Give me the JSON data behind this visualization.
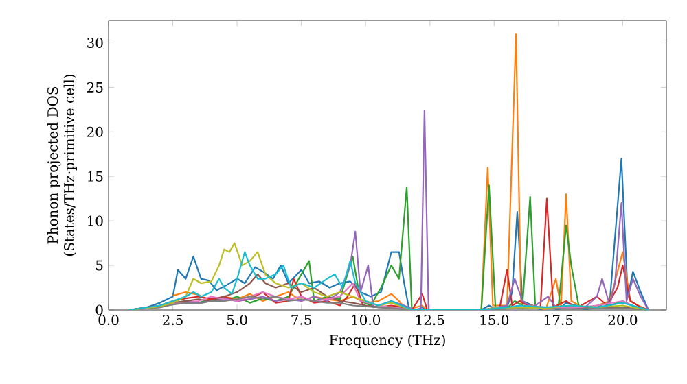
{
  "chart_data": {
    "type": "line",
    "xlabel": "Frequency (THz)",
    "ylabel": "Phonon projected DOS (States/THz·primitive cell)",
    "xlim": [
      0,
      21.7
    ],
    "ylim": [
      0,
      32.5
    ],
    "xticks": [
      {
        "value": 0,
        "label": "0.0"
      },
      {
        "value": 2.5,
        "label": "2.5"
      },
      {
        "value": 5,
        "label": "5.0"
      },
      {
        "value": 7.5,
        "label": "7.5"
      },
      {
        "value": 10,
        "label": "10.0"
      },
      {
        "value": 12.5,
        "label": "12.5"
      },
      {
        "value": 15,
        "label": "15.0"
      },
      {
        "value": 17.5,
        "label": "17.5"
      },
      {
        "value": 20,
        "label": "20.0"
      }
    ],
    "yticks": [
      0,
      5,
      10,
      15,
      20,
      25,
      30
    ],
    "grid": false,
    "marker": "none",
    "line_style": "solid",
    "series": [
      {
        "color": "#1f77b4",
        "x": [
          0.8,
          1.5,
          2,
          2.5,
          2.7,
          3.0,
          3.3,
          3.6,
          3.9,
          4.2,
          4.6,
          5.0,
          5.3,
          5.7,
          6.0,
          6.4,
          6.7,
          7.0,
          7.5,
          7.8,
          8.2,
          8.6,
          9.0,
          9.4,
          9.8,
          10.2,
          10.6,
          11.0,
          11.3,
          11.5,
          11.7,
          12.0,
          12.2,
          12.4,
          14.5,
          14.8,
          15.0,
          15.5,
          15.7,
          15.9,
          16.1,
          16.5,
          16.8,
          17.2,
          17.5,
          17.8,
          18.2,
          18.5,
          19.0,
          19.5,
          19.95,
          20.2,
          20.4,
          20.7,
          21.0
        ],
        "values": [
          0,
          0.3,
          0.8,
          1.5,
          4.5,
          3.5,
          6.0,
          3.5,
          3.3,
          2.2,
          2.8,
          3.5,
          3.0,
          4.8,
          4.3,
          3.5,
          5.0,
          3.0,
          4.5,
          3.0,
          3.2,
          2.5,
          3.0,
          3.2,
          2.0,
          1.5,
          2.0,
          6.5,
          6.5,
          3.0,
          0,
          0,
          0.3,
          0,
          0,
          0.5,
          0.2,
          0.3,
          2.0,
          11,
          1.0,
          0.5,
          0,
          0.3,
          0,
          0.8,
          0.5,
          0,
          0.3,
          1.0,
          17,
          1.5,
          4.3,
          2.0,
          0
        ]
      },
      {
        "color": "#ff7f0e",
        "x": [
          2.5,
          3,
          3.5,
          4,
          4.5,
          5,
          5.5,
          6,
          6.5,
          7,
          7.5,
          8,
          8.5,
          9,
          9.5,
          10,
          10.5,
          11,
          11.3,
          11.6,
          12.2,
          12.4,
          14.5,
          14.75,
          14.95,
          15.5,
          15.85,
          16.05,
          16.5,
          17,
          17.4,
          17.6,
          17.8,
          18.0,
          18.5,
          19,
          19.5,
          20.0,
          20.3,
          20.6,
          21
        ],
        "values": [
          1.6,
          2.0,
          1.7,
          1.0,
          1.5,
          1.2,
          1.8,
          1.0,
          1.5,
          2.0,
          1.0,
          1.5,
          1.2,
          1.0,
          1.5,
          0.8,
          1.0,
          1.8,
          1.0,
          0,
          0.5,
          0,
          0,
          16,
          0.5,
          0.5,
          31,
          0.5,
          0.5,
          0,
          3.5,
          0.3,
          13,
          1.0,
          0.2,
          0.5,
          1.0,
          6.5,
          1.0,
          0.5,
          0
        ]
      },
      {
        "color": "#2ca02c",
        "x": [
          0.8,
          2,
          2.5,
          3,
          3.5,
          4,
          4.5,
          5,
          5.5,
          6,
          6.5,
          7,
          7.8,
          8.0,
          8.5,
          9,
          9.5,
          9.8,
          10.2,
          10.6,
          11,
          11.3,
          11.6,
          11.8,
          14.5,
          14.8,
          15.05,
          15.5,
          15.8,
          16.1,
          16.4,
          16.6,
          17,
          17.5,
          17.8,
          18.0,
          18.3,
          19,
          19.5,
          20,
          20.5,
          21
        ],
        "values": [
          0,
          0.4,
          0.8,
          1.0,
          0.8,
          1.2,
          1.0,
          1.5,
          0.8,
          1.3,
          1.0,
          1.5,
          5.5,
          1.0,
          1.5,
          1.2,
          6.0,
          1.0,
          0.5,
          2.5,
          5,
          3.5,
          13.8,
          0,
          0,
          14,
          0.3,
          0.2,
          1.0,
          0.5,
          12.7,
          0.3,
          0.2,
          0.3,
          9.5,
          5,
          0.3,
          0.2,
          0.5,
          1.0,
          0.3,
          0
        ]
      },
      {
        "color": "#d62728",
        "x": [
          0.8,
          2,
          2.5,
          3,
          3.5,
          4,
          4.5,
          5,
          5.5,
          6,
          6.5,
          7,
          7.2,
          7.5,
          8,
          8.5,
          9,
          9.3,
          9.6,
          9.9,
          10.5,
          11,
          11.5,
          11.8,
          12.2,
          12.4,
          14.5,
          15.2,
          15.5,
          15.7,
          16,
          16.5,
          16.8,
          17.05,
          17.3,
          17.8,
          18.2,
          19,
          19.4,
          19.8,
          20.0,
          20.3,
          20.7,
          21
        ],
        "values": [
          0,
          0.5,
          1.0,
          1.3,
          1.5,
          1.2,
          1.5,
          1.0,
          1.2,
          2.0,
          0.8,
          1.0,
          3.5,
          1.5,
          0.8,
          1.0,
          0.5,
          1.5,
          3.0,
          0.5,
          0.3,
          0.5,
          0.3,
          0,
          1.8,
          0,
          0,
          0,
          4.5,
          0.5,
          1.0,
          0.2,
          0.3,
          12.5,
          0.3,
          1.0,
          0.2,
          1.5,
          0.5,
          2.5,
          5,
          1.0,
          0.3,
          0
        ]
      },
      {
        "color": "#9467bd",
        "x": [
          0.8,
          2,
          2.5,
          3,
          3.5,
          4,
          4.5,
          5,
          5.5,
          6,
          6.5,
          7,
          7.5,
          8,
          8.5,
          9,
          9.4,
          9.6,
          9.8,
          10.1,
          10.3,
          11,
          11.5,
          11.9,
          12.15,
          12.29,
          12.45,
          14.5,
          15.5,
          15.8,
          16.1,
          16.5,
          17.1,
          17.4,
          18,
          18.5,
          19,
          19.2,
          19.5,
          19.7,
          19.95,
          20.15,
          20.4,
          20.7,
          21
        ],
        "values": [
          0,
          0.3,
          0.7,
          1.0,
          0.8,
          1.0,
          1.3,
          1.0,
          1.2,
          1.5,
          1.0,
          1.2,
          1.0,
          1.5,
          1.0,
          2.0,
          5,
          8.8,
          2.0,
          5.0,
          0.3,
          1.0,
          0.5,
          0,
          0.2,
          22.4,
          0,
          0,
          0.5,
          3.5,
          1.0,
          0.3,
          1.5,
          0.3,
          0.5,
          0.2,
          1.5,
          3.5,
          0.5,
          3.0,
          12,
          1.0,
          3.5,
          1.5,
          0
        ]
      },
      {
        "color": "#8c564b",
        "x": [
          0.8,
          2,
          2.5,
          3,
          3.5,
          4,
          4.5,
          5,
          5.5,
          5.8,
          6.1,
          6.5,
          7,
          7.5,
          8,
          8.5,
          9,
          9.5,
          10,
          10.5,
          11,
          11.5,
          11.8,
          14.5,
          15,
          16,
          17,
          18,
          19,
          20,
          21
        ],
        "values": [
          0,
          0.4,
          0.8,
          1.0,
          1.2,
          1.0,
          1.5,
          2.0,
          3.0,
          4.0,
          3.0,
          2.5,
          3.0,
          2.0,
          2.5,
          1.5,
          1.0,
          0.8,
          0.5,
          0.3,
          0.2,
          0.2,
          0,
          0,
          0.1,
          0.3,
          0.2,
          0.2,
          0.2,
          0.3,
          0
        ]
      },
      {
        "color": "#e377c2",
        "x": [
          0.8,
          2,
          2.5,
          3,
          3.5,
          4,
          4.5,
          5,
          5.5,
          6,
          6.5,
          7,
          7.5,
          8,
          8.5,
          9,
          9.5,
          9.8,
          10.5,
          11,
          11.8,
          14.5,
          15.5,
          16,
          17,
          18,
          19,
          20,
          20.5,
          21
        ],
        "values": [
          0,
          0.3,
          0.7,
          0.8,
          1.0,
          1.5,
          1.2,
          1.0,
          1.5,
          2.0,
          1.5,
          1.2,
          1.5,
          1.0,
          1.2,
          1.5,
          3.0,
          1.0,
          0.5,
          0.3,
          0,
          0,
          0.2,
          0.5,
          0.3,
          0.2,
          0.5,
          1.0,
          0.3,
          0
        ]
      },
      {
        "color": "#7f7f7f",
        "x": [
          0.8,
          2,
          2.5,
          3,
          3.5,
          4,
          4.5,
          5,
          5.5,
          6,
          6.5,
          7,
          7.5,
          8,
          8.5,
          9,
          9.5,
          10,
          10.5,
          11,
          11.8,
          14.5,
          16,
          18,
          20,
          21
        ],
        "values": [
          0,
          0.3,
          0.6,
          0.8,
          0.7,
          1.0,
          1.0,
          1.2,
          1.5,
          1.3,
          1.5,
          1.0,
          1.2,
          1.0,
          0.8,
          0.8,
          0.5,
          0.4,
          0.3,
          0.2,
          0,
          0,
          0.2,
          0.1,
          0.2,
          0
        ]
      },
      {
        "color": "#bcbd22",
        "x": [
          0.8,
          2,
          2.5,
          3,
          3.3,
          3.6,
          4.0,
          4.3,
          4.5,
          4.7,
          4.9,
          5.2,
          5.5,
          5.8,
          6.1,
          6.5,
          7,
          7.5,
          8,
          8.5,
          9,
          9.5,
          10,
          10.5,
          11,
          11.8,
          14.5,
          15,
          16,
          17,
          18,
          19,
          20,
          21
        ],
        "values": [
          0,
          0.4,
          0.8,
          1.5,
          3.5,
          3.0,
          3.2,
          5.0,
          6.8,
          6.5,
          7.5,
          5.0,
          5.5,
          6.5,
          4.0,
          3.0,
          2.5,
          3.0,
          2.0,
          1.5,
          2.0,
          1.5,
          1.0,
          0.5,
          0.8,
          0,
          0,
          0.2,
          0.3,
          0.2,
          0.5,
          0.3,
          0.5,
          0
        ]
      },
      {
        "color": "#17becf",
        "x": [
          0.8,
          2,
          2.5,
          3,
          3.3,
          3.6,
          4,
          4.3,
          4.5,
          4.8,
          5.0,
          5.3,
          5.5,
          5.8,
          6.1,
          6.5,
          6.8,
          7.1,
          7.5,
          8,
          8.5,
          8.8,
          9.1,
          9.4,
          9.6,
          10,
          10.5,
          11,
          11.8,
          14.5,
          15.5,
          16,
          17,
          18,
          19,
          20,
          21
        ],
        "values": [
          0,
          0.5,
          1.0,
          1.5,
          2.0,
          1.5,
          2.0,
          3.5,
          2.5,
          1.8,
          3.5,
          6.5,
          5.0,
          3.5,
          3.5,
          4.0,
          5.0,
          2.5,
          3.0,
          2.5,
          3.5,
          4.0,
          2.5,
          5.5,
          3.0,
          1.0,
          0.5,
          1.0,
          0,
          0,
          0.3,
          0.5,
          0.3,
          0.5,
          0.3,
          0.8,
          0
        ]
      }
    ]
  }
}
